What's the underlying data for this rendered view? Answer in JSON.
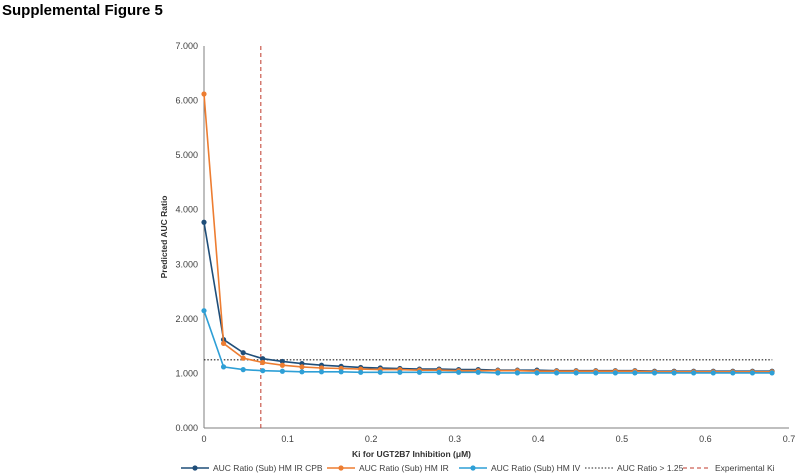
{
  "figure_title": "Supplemental Figure 5",
  "chart_data": {
    "type": "line",
    "title": "Supplemental Figure 5",
    "xlabel": "Ki for UGT2B7 Inhibition (μM)",
    "ylabel": "Predicted AUC Ratio",
    "xlim": [
      0,
      0.7
    ],
    "ylim": [
      0,
      7
    ],
    "x_ticks": [
      0,
      0.1,
      0.2,
      0.3,
      0.4,
      0.5,
      0.6,
      0.7
    ],
    "x_tick_labels": [
      "0",
      "0.1",
      "0.2",
      "0.3",
      "0.4",
      "0.5",
      "0.6",
      "0.7"
    ],
    "y_ticks": [
      0,
      1,
      2,
      3,
      4,
      5,
      6,
      7
    ],
    "y_tick_labels": [
      "0.000",
      "1.000",
      "2.000",
      "3.000",
      "4.000",
      "5.000",
      "6.000",
      "7.000"
    ],
    "grid": false,
    "legend_position": "bottom",
    "x": [
      0.0,
      0.0234,
      0.0469,
      0.0703,
      0.0938,
      0.1172,
      0.1406,
      0.1641,
      0.1875,
      0.2109,
      0.2344,
      0.2578,
      0.2813,
      0.3047,
      0.3281,
      0.3516,
      0.375,
      0.3984,
      0.4219,
      0.4453,
      0.4688,
      0.4922,
      0.5156,
      0.5391,
      0.5625,
      0.5859,
      0.6094,
      0.6328,
      0.6563,
      0.6797
    ],
    "series": [
      {
        "name": "AUC Ratio (Sub) HM IR CPB",
        "color": "#1f4e79",
        "values": [
          3.77,
          1.62,
          1.38,
          1.27,
          1.22,
          1.18,
          1.15,
          1.13,
          1.11,
          1.1,
          1.09,
          1.08,
          1.08,
          1.07,
          1.07,
          1.06,
          1.06,
          1.06,
          1.05,
          1.05,
          1.05,
          1.05,
          1.05,
          1.04,
          1.04,
          1.04,
          1.04,
          1.04,
          1.04,
          1.04
        ]
      },
      {
        "name": "AUC Ratio (Sub) HM IR",
        "color": "#ed7d31",
        "values": [
          6.12,
          1.55,
          1.28,
          1.2,
          1.15,
          1.12,
          1.1,
          1.09,
          1.08,
          1.07,
          1.07,
          1.06,
          1.06,
          1.05,
          1.05,
          1.05,
          1.05,
          1.04,
          1.04,
          1.04,
          1.04,
          1.04,
          1.04,
          1.03,
          1.03,
          1.03,
          1.03,
          1.03,
          1.03,
          1.03
        ]
      },
      {
        "name": "AUC Ratio (Sub) HM IV",
        "color": "#2e9fd6",
        "values": [
          2.15,
          1.12,
          1.07,
          1.05,
          1.04,
          1.03,
          1.03,
          1.03,
          1.02,
          1.02,
          1.02,
          1.02,
          1.02,
          1.02,
          1.02,
          1.01,
          1.01,
          1.01,
          1.01,
          1.01,
          1.01,
          1.01,
          1.01,
          1.01,
          1.01,
          1.01,
          1.01,
          1.01,
          1.01,
          1.01
        ]
      }
    ],
    "reference_lines": [
      {
        "name": "AUC Ratio > 1.25",
        "orientation": "horizontal",
        "value": 1.25,
        "style": "dotted",
        "color": "#222222"
      },
      {
        "name": "Experimental Ki",
        "orientation": "vertical",
        "value": 0.068,
        "style": "dashed",
        "color": "#c0392b"
      }
    ],
    "legend": [
      "AUC Ratio (Sub) HM IR CPB",
      "AUC Ratio (Sub) HM IR",
      "AUC Ratio (Sub) HM IV",
      "AUC Ratio > 1.25",
      "Experimental Ki"
    ]
  }
}
